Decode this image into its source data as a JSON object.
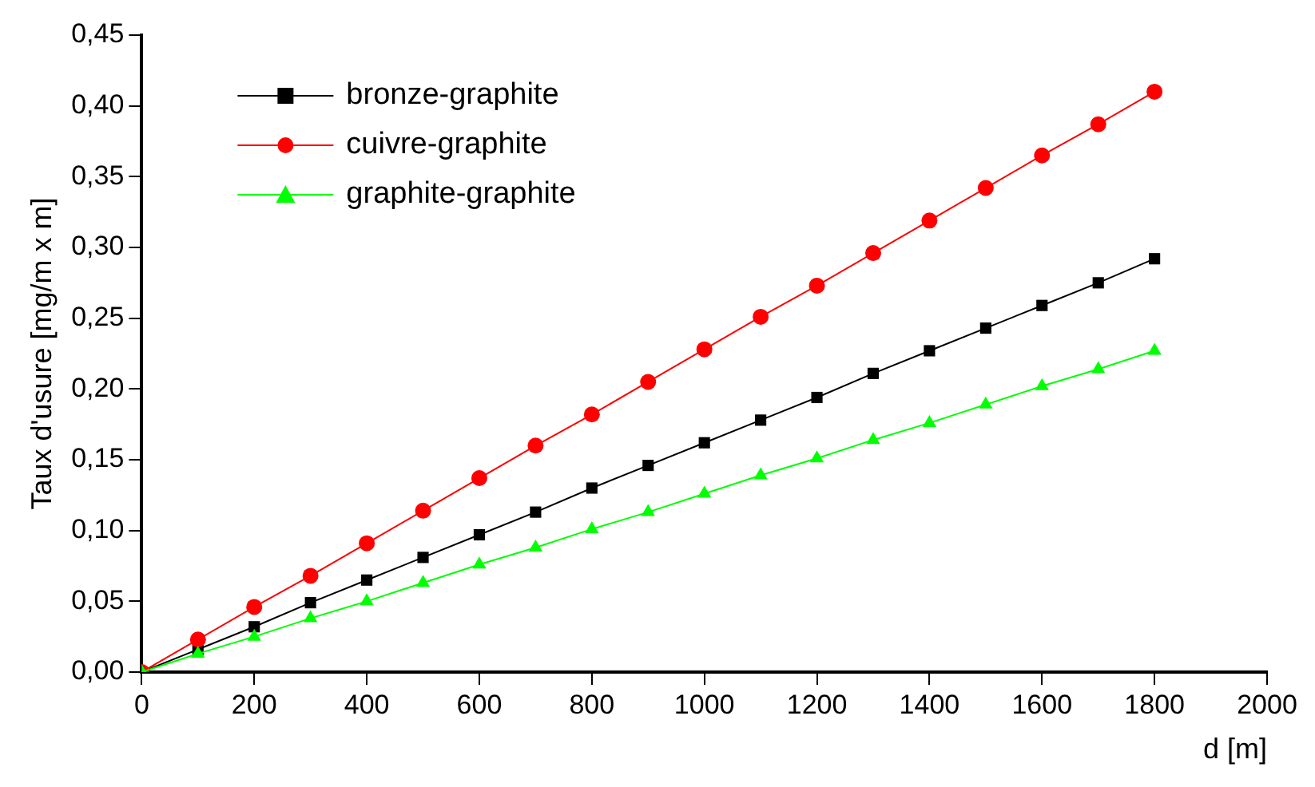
{
  "chart_data": {
    "type": "line",
    "xlabel": "d [m]",
    "ylabel": "Taux d'usure [mg/m x m]",
    "x": [
      0,
      100,
      200,
      300,
      400,
      500,
      600,
      700,
      800,
      900,
      1000,
      1100,
      1200,
      1300,
      1400,
      1500,
      1600,
      1700,
      1800
    ],
    "series": [
      {
        "name": "bronze-graphite",
        "color": "#000000",
        "marker": "square",
        "values": [
          0,
          0.016,
          0.032,
          0.049,
          0.065,
          0.081,
          0.097,
          0.113,
          0.13,
          0.146,
          0.162,
          0.178,
          0.194,
          0.211,
          0.227,
          0.243,
          0.259,
          0.275,
          0.292
        ]
      },
      {
        "name": "cuivre-graphite",
        "color": "#ff0000",
        "marker": "circle",
        "values": [
          0,
          0.023,
          0.046,
          0.068,
          0.091,
          0.114,
          0.137,
          0.16,
          0.182,
          0.205,
          0.228,
          0.251,
          0.273,
          0.296,
          0.319,
          0.342,
          0.365,
          0.387,
          0.41
        ]
      },
      {
        "name": "graphite-graphite",
        "color": "#00ff00",
        "marker": "triangle",
        "values": [
          0,
          0.013,
          0.025,
          0.038,
          0.05,
          0.063,
          0.076,
          0.088,
          0.101,
          0.113,
          0.126,
          0.139,
          0.151,
          0.164,
          0.176,
          0.189,
          0.202,
          0.214,
          0.227
        ]
      }
    ],
    "xlim": [
      0,
      2000
    ],
    "xticks": [
      0,
      200,
      400,
      600,
      800,
      1000,
      1200,
      1400,
      1600,
      1800,
      2000
    ],
    "ylim": [
      0,
      0.45
    ],
    "yticks": [
      {
        "value": 0,
        "label": "0,00"
      },
      {
        "value": 0.05,
        "label": "0,05"
      },
      {
        "value": 0.1,
        "label": "0,10"
      },
      {
        "value": 0.15,
        "label": "0,15"
      },
      {
        "value": 0.2,
        "label": "0,20"
      },
      {
        "value": 0.25,
        "label": "0,25"
      },
      {
        "value": 0.3,
        "label": "0,30"
      },
      {
        "value": 0.35,
        "label": "0,35"
      },
      {
        "value": 0.4,
        "label": "0,40"
      },
      {
        "value": 0.45,
        "label": "0,45"
      }
    ],
    "grid": false,
    "legend": "top left",
    "line_style": "solid"
  }
}
